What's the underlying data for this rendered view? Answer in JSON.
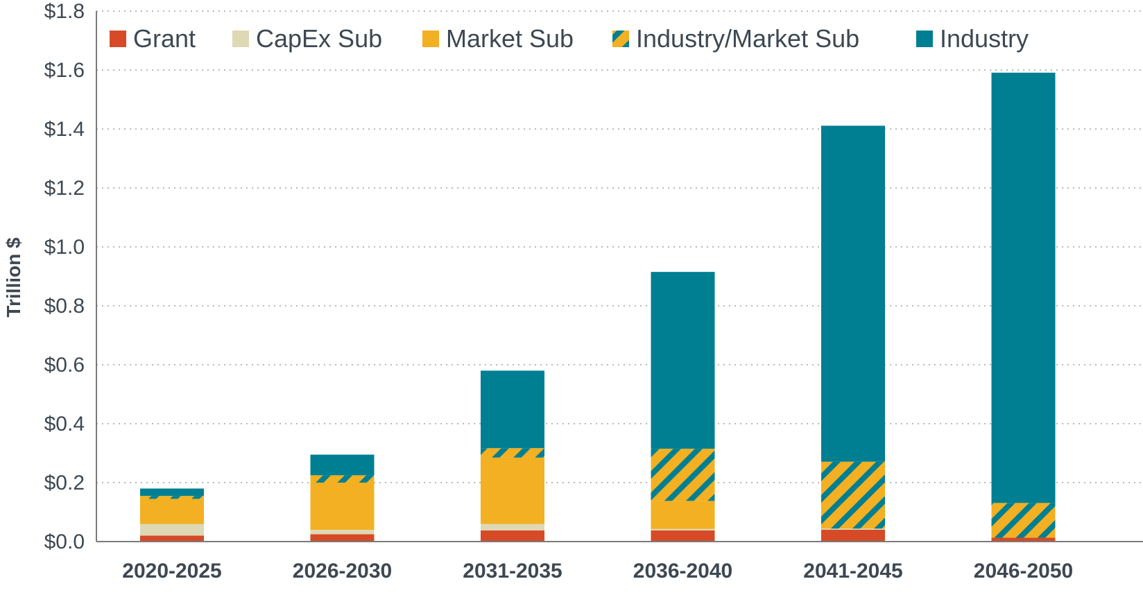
{
  "chart_data": {
    "type": "bar",
    "stacked": true,
    "ylabel": "Trillion $",
    "xlabel": "",
    "ylim": [
      0,
      1.8
    ],
    "yticks": [
      0.0,
      0.2,
      0.4,
      0.6,
      0.8,
      1.0,
      1.2,
      1.4,
      1.6,
      1.8
    ],
    "ytick_labels": [
      "$0.0",
      "$0.2",
      "$0.4",
      "$0.6",
      "$0.8",
      "$1.0",
      "$1.2",
      "$1.4",
      "$1.6",
      "$1.8"
    ],
    "grid": "horizontal dotted",
    "legend_position": "top",
    "categories": [
      "2020-2025",
      "2026-2030",
      "2031-2035",
      "2036-2040",
      "2041-2045",
      "2046-2050"
    ],
    "series": [
      {
        "name": "Grant",
        "color": "#d64a27",
        "pattern": "solid",
        "values": [
          0.02,
          0.025,
          0.038,
          0.038,
          0.04,
          0.013
        ]
      },
      {
        "name": "CapEx Sub",
        "color": "#ded8b4",
        "pattern": "solid",
        "values": [
          0.04,
          0.015,
          0.022,
          0.005,
          0.004,
          0.0
        ]
      },
      {
        "name": "Market Sub",
        "color": "#f2b022",
        "pattern": "solid",
        "values": [
          0.085,
          0.16,
          0.225,
          0.095,
          0.0,
          0.0
        ]
      },
      {
        "name": "Industry/Market Sub",
        "color": "#f2b022",
        "stripe_color": "#007f92",
        "pattern": "hatched",
        "values": [
          0.01,
          0.025,
          0.032,
          0.177,
          0.227,
          0.118
        ]
      },
      {
        "name": "Industry",
        "color": "#007f92",
        "pattern": "solid",
        "values": [
          0.025,
          0.07,
          0.263,
          0.6,
          1.14,
          1.46
        ]
      }
    ]
  }
}
